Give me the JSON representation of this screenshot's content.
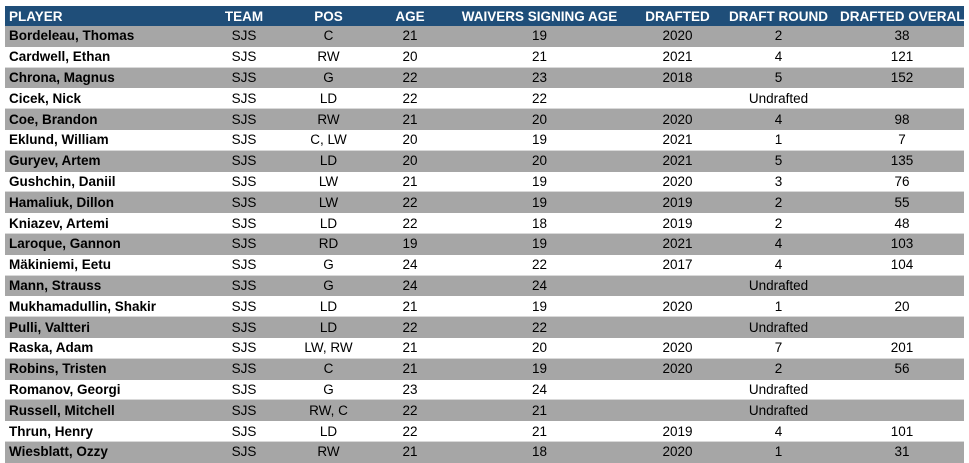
{
  "headers": {
    "player": "PLAYER",
    "team": "TEAM",
    "pos": "POS",
    "age": "AGE",
    "waivers_signing_age": "WAIVERS SIGNING AGE",
    "drafted": "DRAFTED",
    "draft_round": "DRAFT ROUND",
    "drafted_overall": "DRAFTED OVERALL"
  },
  "rows": [
    {
      "player": "Bordeleau, Thomas",
      "team": "SJS",
      "pos": "C",
      "age": "21",
      "waivers_signing_age": "19",
      "drafted": "2020",
      "draft_round": "2",
      "drafted_overall": "38",
      "undrafted": ""
    },
    {
      "player": "Cardwell, Ethan",
      "team": "SJS",
      "pos": "RW",
      "age": "20",
      "waivers_signing_age": "21",
      "drafted": "2021",
      "draft_round": "4",
      "drafted_overall": "121",
      "undrafted": ""
    },
    {
      "player": "Chrona, Magnus",
      "team": "SJS",
      "pos": "G",
      "age": "22",
      "waivers_signing_age": "23",
      "drafted": "2018",
      "draft_round": "5",
      "drafted_overall": "152",
      "undrafted": ""
    },
    {
      "player": "Cicek, Nick",
      "team": "SJS",
      "pos": "LD",
      "age": "22",
      "waivers_signing_age": "22",
      "drafted": "",
      "draft_round": "",
      "drafted_overall": "",
      "undrafted": "Undrafted"
    },
    {
      "player": "Coe, Brandon",
      "team": "SJS",
      "pos": "RW",
      "age": "21",
      "waivers_signing_age": "20",
      "drafted": "2020",
      "draft_round": "4",
      "drafted_overall": "98",
      "undrafted": ""
    },
    {
      "player": "Eklund, William",
      "team": "SJS",
      "pos": "C, LW",
      "age": "20",
      "waivers_signing_age": "19",
      "drafted": "2021",
      "draft_round": "1",
      "drafted_overall": "7",
      "undrafted": ""
    },
    {
      "player": "Guryev, Artem",
      "team": "SJS",
      "pos": "LD",
      "age": "20",
      "waivers_signing_age": "20",
      "drafted": "2021",
      "draft_round": "5",
      "drafted_overall": "135",
      "undrafted": ""
    },
    {
      "player": "Gushchin, Daniil",
      "team": "SJS",
      "pos": "LW",
      "age": "21",
      "waivers_signing_age": "19",
      "drafted": "2020",
      "draft_round": "3",
      "drafted_overall": "76",
      "undrafted": ""
    },
    {
      "player": "Hamaliuk, Dillon",
      "team": "SJS",
      "pos": "LW",
      "age": "22",
      "waivers_signing_age": "19",
      "drafted": "2019",
      "draft_round": "2",
      "drafted_overall": "55",
      "undrafted": ""
    },
    {
      "player": "Kniazev, Artemi",
      "team": "SJS",
      "pos": "LD",
      "age": "22",
      "waivers_signing_age": "18",
      "drafted": "2019",
      "draft_round": "2",
      "drafted_overall": "48",
      "undrafted": ""
    },
    {
      "player": "Laroque, Gannon",
      "team": "SJS",
      "pos": "RD",
      "age": "19",
      "waivers_signing_age": "19",
      "drafted": "2021",
      "draft_round": "4",
      "drafted_overall": "103",
      "undrafted": ""
    },
    {
      "player": "Mäkiniemi, Eetu",
      "team": "SJS",
      "pos": "G",
      "age": "24",
      "waivers_signing_age": "22",
      "drafted": "2017",
      "draft_round": "4",
      "drafted_overall": "104",
      "undrafted": ""
    },
    {
      "player": "Mann, Strauss",
      "team": "SJS",
      "pos": "G",
      "age": "24",
      "waivers_signing_age": "24",
      "drafted": "",
      "draft_round": "",
      "drafted_overall": "",
      "undrafted": "Undrafted"
    },
    {
      "player": "Mukhamadullin, Shakir",
      "team": "SJS",
      "pos": "LD",
      "age": "21",
      "waivers_signing_age": "19",
      "drafted": "2020",
      "draft_round": "1",
      "drafted_overall": "20",
      "undrafted": ""
    },
    {
      "player": "Pulli, Valtteri",
      "team": "SJS",
      "pos": "LD",
      "age": "22",
      "waivers_signing_age": "22",
      "drafted": "",
      "draft_round": "",
      "drafted_overall": "",
      "undrafted": "Undrafted"
    },
    {
      "player": "Raska, Adam",
      "team": "SJS",
      "pos": "LW, RW",
      "age": "21",
      "waivers_signing_age": "20",
      "drafted": "2020",
      "draft_round": "7",
      "drafted_overall": "201",
      "undrafted": ""
    },
    {
      "player": "Robins, Tristen",
      "team": "SJS",
      "pos": "C",
      "age": "21",
      "waivers_signing_age": "19",
      "drafted": "2020",
      "draft_round": "2",
      "drafted_overall": "56",
      "undrafted": ""
    },
    {
      "player": "Romanov, Georgi",
      "team": "SJS",
      "pos": "G",
      "age": "23",
      "waivers_signing_age": "24",
      "drafted": "",
      "draft_round": "",
      "drafted_overall": "",
      "undrafted": "Undrafted"
    },
    {
      "player": "Russell, Mitchell",
      "team": "SJS",
      "pos": "RW, C",
      "age": "22",
      "waivers_signing_age": "21",
      "drafted": "",
      "draft_round": "",
      "drafted_overall": "",
      "undrafted": "Undrafted"
    },
    {
      "player": "Thrun, Henry",
      "team": "SJS",
      "pos": "LD",
      "age": "22",
      "waivers_signing_age": "21",
      "drafted": "2019",
      "draft_round": "4",
      "drafted_overall": "101",
      "undrafted": ""
    },
    {
      "player": "Wiesblatt, Ozzy",
      "team": "SJS",
      "pos": "RW",
      "age": "21",
      "waivers_signing_age": "18",
      "drafted": "2020",
      "draft_round": "1",
      "drafted_overall": "31",
      "undrafted": ""
    }
  ],
  "colors": {
    "header_bg": "#1f4e79",
    "header_text": "#ffffff",
    "stripe_bg": "#a6a6a6",
    "row_bg": "#ffffff"
  }
}
